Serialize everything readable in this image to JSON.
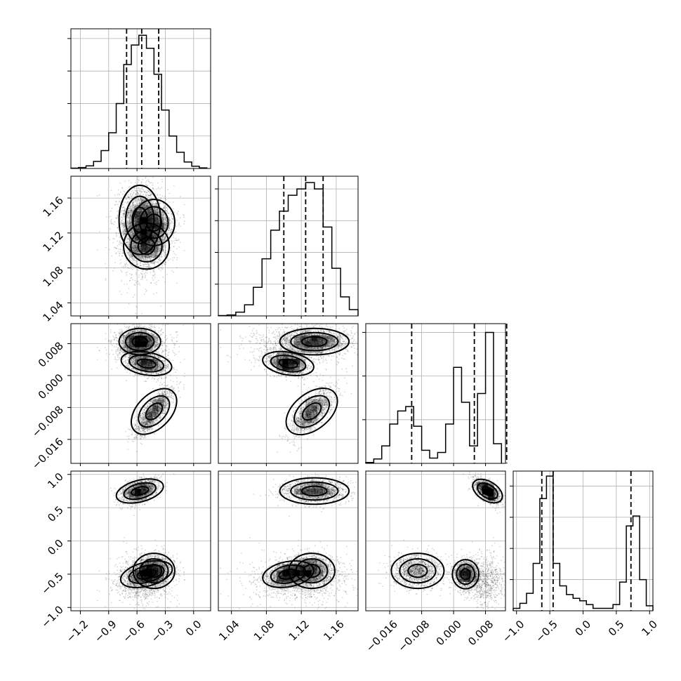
{
  "chart_data": {
    "type": "corner",
    "title": "",
    "grid": true,
    "dimensions": [
      {
        "range": [
          -1.3,
          0.18
        ],
        "ticks": [
          -1.2,
          -0.9,
          -0.6,
          -0.3,
          0.0
        ],
        "tick_labels": [
          "−1.2",
          "−0.9",
          "−0.6",
          "−0.3",
          "0.0"
        ],
        "quantiles": [
          -0.71,
          -0.55,
          -0.37
        ],
        "hist_edges": [
          -1.3,
          -1.22,
          -1.14,
          -1.06,
          -0.98,
          -0.9,
          -0.82,
          -0.74,
          -0.66,
          -0.58,
          -0.5,
          -0.42,
          -0.34,
          -0.26,
          -0.18,
          -0.1,
          -0.02,
          0.06,
          0.14
        ],
        "hist_counts": [
          1,
          3,
          8,
          22,
          55,
          110,
          200,
          320,
          380,
          410,
          370,
          290,
          180,
          100,
          50,
          20,
          7,
          2
        ],
        "hist_max": 430,
        "hist_ticks": [
          100,
          200,
          300,
          400
        ]
      },
      {
        "range": [
          1.025,
          1.185
        ],
        "ticks": [
          1.04,
          1.08,
          1.12,
          1.16
        ],
        "tick_labels": [
          "1.04",
          "1.08",
          "1.12",
          "1.16"
        ],
        "quantiles": [
          1.1,
          1.125,
          1.145
        ],
        "hist_edges": [
          1.025,
          1.035,
          1.045,
          1.055,
          1.065,
          1.075,
          1.085,
          1.095,
          1.105,
          1.115,
          1.125,
          1.135,
          1.145,
          1.155,
          1.165,
          1.175,
          1.185
        ],
        "hist_counts": [
          1,
          3,
          12,
          35,
          90,
          180,
          270,
          330,
          380,
          400,
          420,
          400,
          280,
          150,
          60,
          20
        ],
        "hist_max": 440,
        "hist_ticks": [
          100,
          200,
          300,
          400
        ]
      },
      {
        "range": [
          -0.022,
          0.013
        ],
        "ticks": [
          -0.016,
          -0.008,
          0.0,
          0.008
        ],
        "tick_labels": [
          "−0.016",
          "−0.008",
          "0.000",
          "0.008"
        ],
        "quantiles": [
          -0.0105,
          0.0052,
          0.0133
        ],
        "hist_edges": [
          -0.022,
          -0.02,
          -0.018,
          -0.016,
          -0.014,
          -0.012,
          -0.01,
          -0.008,
          -0.006,
          -0.004,
          -0.002,
          0.0,
          0.002,
          0.004,
          0.006,
          0.008,
          0.01,
          0.012
        ],
        "hist_counts": [
          2,
          10,
          40,
          90,
          120,
          130,
          85,
          30,
          12,
          25,
          90,
          220,
          140,
          40,
          160,
          300,
          45
        ],
        "hist_max": 320,
        "hist_ticks": [
          100,
          200,
          300
        ]
      },
      {
        "range": [
          -1.05,
          1.05
        ],
        "ticks": [
          -1.0,
          -0.5,
          0.0,
          0.5,
          1.0
        ],
        "tick_labels": [
          "−1.0",
          "−0.5",
          "0.0",
          "0.5",
          "1.0"
        ],
        "quantiles": [
          -0.62,
          -0.45,
          0.72
        ],
        "hist_edges": [
          -1.05,
          -0.95,
          -0.85,
          -0.75,
          -0.65,
          -0.55,
          -0.45,
          -0.35,
          -0.25,
          -0.15,
          -0.05,
          0.05,
          0.15,
          0.25,
          0.35,
          0.45,
          0.55,
          0.65,
          0.75,
          0.85,
          0.95,
          1.05
        ],
        "hist_counts": [
          20,
          60,
          140,
          380,
          900,
          1080,
          380,
          200,
          130,
          100,
          80,
          50,
          20,
          20,
          20,
          50,
          230,
          680,
          760,
          250,
          40
        ],
        "hist_max": 1120,
        "hist_ticks": [
          250,
          500,
          750,
          1000
        ]
      }
    ],
    "clusters": [
      {
        "center": [
          -0.57,
          1.135,
          0.0085,
          0.75
        ],
        "spread": [
          0.1,
          0.018,
          0.0015,
          0.09
        ],
        "weight": 1.0
      },
      {
        "center": [
          -0.5,
          1.105,
          0.003,
          -0.5
        ],
        "spread": [
          0.11,
          0.012,
          0.0015,
          0.1
        ],
        "weight": 0.9
      },
      {
        "center": [
          -0.42,
          1.132,
          -0.009,
          -0.45
        ],
        "spread": [
          0.1,
          0.012,
          0.003,
          0.12
        ],
        "weight": 0.9
      },
      {
        "center": [
          -0.55,
          1.12,
          0.008,
          -0.6
        ],
        "spread": [
          0.15,
          0.03,
          0.0025,
          0.2
        ],
        "weight": 0.5
      }
    ]
  }
}
